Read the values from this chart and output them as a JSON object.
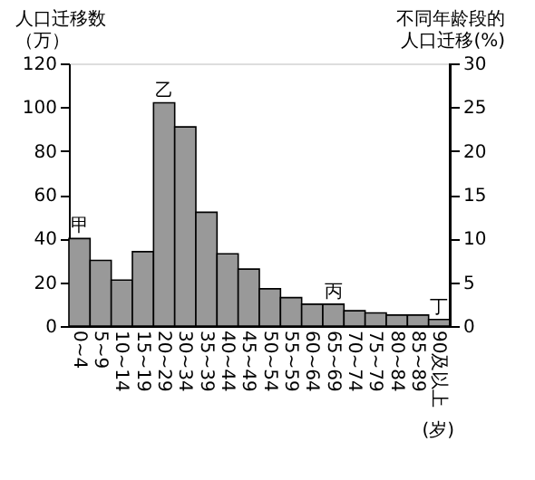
{
  "chart_data": {
    "type": "bar",
    "categories": [
      "0~4",
      "5~9",
      "10~14",
      "15~19",
      "20~29",
      "30~34",
      "35~39",
      "40~44",
      "45~49",
      "50~54",
      "55~59",
      "60~64",
      "65~69",
      "70~74",
      "75~79",
      "80~84",
      "85~89",
      "90及以上"
    ],
    "values": [
      40,
      30,
      21,
      34,
      102,
      91,
      52,
      33,
      26,
      17,
      13,
      10,
      10,
      7,
      6,
      5,
      5,
      3
    ],
    "color": "#999999",
    "xlabel": "(岁)",
    "ylabel": "人口迁移数（万）",
    "y2label": "不同年龄段的人口迁移(%)",
    "ylim": [
      0,
      120
    ],
    "yticks": [
      0,
      20,
      40,
      60,
      80,
      100,
      120
    ],
    "y2lim": [
      0,
      30
    ],
    "y2ticks": [
      0,
      5,
      10,
      15,
      20,
      25,
      30
    ],
    "annotations": [
      {
        "text": "甲",
        "x": "0~4",
        "y": 40
      },
      {
        "text": "乙",
        "x": "20~29",
        "y": 102
      },
      {
        "text": "丙",
        "x": "65~69",
        "y": 10
      },
      {
        "text": "丁",
        "x": "90及以上",
        "y": 3
      }
    ],
    "grid": false
  }
}
